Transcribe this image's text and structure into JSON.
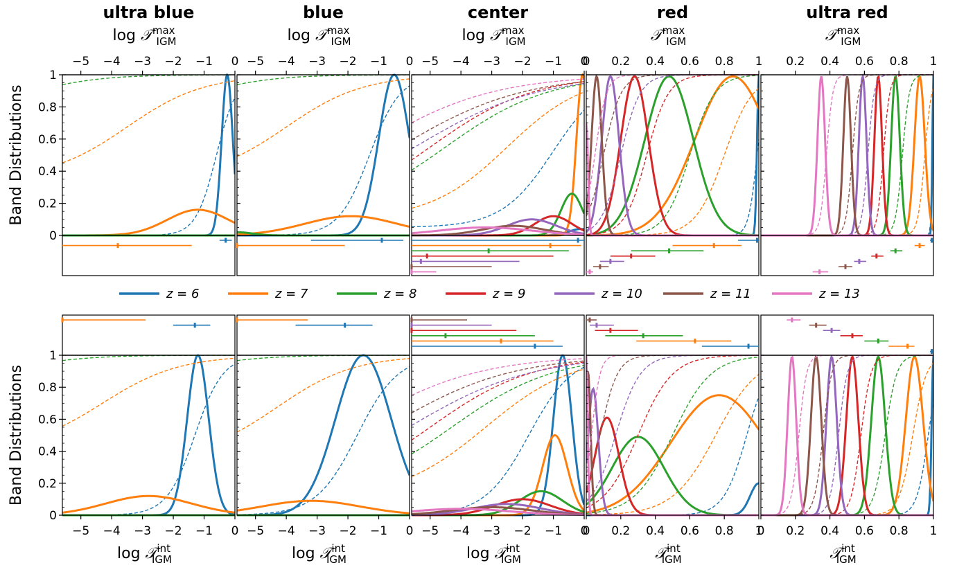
{
  "figure": {
    "ylabel": "Band  Distributions",
    "titles": [
      "ultra blue",
      "blue",
      "center",
      "red",
      "ultra red"
    ],
    "top_xlabels": [
      "log 𝒯ᵐᵃˣ_IGM",
      "log 𝒯ᵐᵃˣ_IGM",
      "log 𝒯ᵐᵃˣ_IGM",
      "𝒯ᵐᵃˣ_IGM",
      "𝒯ᵐᵃˣ_IGM"
    ],
    "bottom_xlabels": [
      "log 𝒯ⁱⁿᵗ_IGM",
      "log 𝒯ⁱⁿᵗ_IGM",
      "log 𝒯ⁱⁿᵗ_IGM",
      "𝒯ⁱⁿᵗ_IGM",
      "𝒯ⁱⁿᵗ_IGM"
    ],
    "label_parts": {
      "log": "log ",
      "T": "𝒯",
      "max": "max",
      "int": "int",
      "sub": "IGM"
    }
  },
  "chart_data": {
    "type": "line",
    "colors": {
      "6": "#1f77b4",
      "7": "#ff7f0e",
      "8": "#2ca02c",
      "9": "#d62728",
      "10": "#9467bd",
      "11": "#8c564b",
      "13": "#e377c2"
    },
    "legend": [
      {
        "z": "6",
        "label": "z = 6"
      },
      {
        "z": "7",
        "label": "z = 7"
      },
      {
        "z": "8",
        "label": "z = 8"
      },
      {
        "z": "9",
        "label": "z = 9"
      },
      {
        "z": "10",
        "label": "z = 10"
      },
      {
        "z": "11",
        "label": "z = 11"
      },
      {
        "z": "13",
        "label": "z = 13"
      }
    ],
    "ylim": [
      0,
      1
    ],
    "yticks": [
      "0",
      "0.2",
      "0.4",
      "0.6",
      "0.8",
      "1"
    ],
    "log_xlim": [
      -5.6,
      0
    ],
    "lin_xlim": [
      0,
      1
    ],
    "log_xticks": [
      "−5",
      "−4",
      "−3",
      "−2",
      "−1",
      "0"
    ],
    "lin_xticks": [
      "0",
      "0.2",
      "0.4",
      "0.6",
      "0.8",
      "1"
    ],
    "lin_xticks_ultra_red_top": [
      "0.2",
      "0.4",
      "0.6",
      "0.8",
      "1"
    ],
    "panels": {
      "top": [
        {
          "z": "6",
          "peak_x": -0.25,
          "peak_y": 1.0,
          "w": 0.18,
          "cdf_mid": -0.6,
          "cdf_k": 3.0,
          "cdf_base": 0.0
        },
        {
          "z": "7",
          "peak_x": -1.2,
          "peak_y": 0.16,
          "w": 1.0,
          "cdf_mid": -3.5,
          "cdf_k": 0.8,
          "cdf_base": 0.35
        },
        {
          "z": "8",
          "peak_x": -5.6,
          "peak_y": 0.0,
          "w": 0.5,
          "cdf_mid": -6.5,
          "cdf_k": 0.9,
          "cdf_base": 0.8
        }
      ],
      "top_blue": [
        {
          "z": "6",
          "peak_x": -0.5,
          "peak_y": 1.0,
          "w": 0.5,
          "cdf_mid": -1.3,
          "cdf_k": 2.0,
          "cdf_base": 0.0
        },
        {
          "z": "7",
          "peak_x": -1.9,
          "peak_y": 0.12,
          "w": 1.5,
          "cdf_mid": -4.0,
          "cdf_k": 0.8,
          "cdf_base": 0.35
        },
        {
          "z": "8",
          "peak_x": -5.6,
          "peak_y": 0.02,
          "w": 0.5,
          "cdf_mid": -6.5,
          "cdf_k": 0.9,
          "cdf_base": 0.8
        }
      ],
      "top_center": [
        {
          "z": "6",
          "peak_x": -0.1,
          "peak_y": 0.04,
          "w": 0.4,
          "cdf_mid": -1.0,
          "cdf_k": 1.2,
          "cdf_base": 0.05
        },
        {
          "z": "7",
          "peak_x": -0.05,
          "peak_y": 1.0,
          "w": 0.2,
          "cdf_mid": -2.5,
          "cdf_k": 0.8,
          "cdf_base": 0.1
        },
        {
          "z": "8",
          "peak_x": -0.4,
          "peak_y": 0.26,
          "w": 0.35,
          "cdf_mid": -4.5,
          "cdf_k": 0.6,
          "cdf_base": 0.1
        },
        {
          "z": "9",
          "peak_x": -1.0,
          "peak_y": 0.12,
          "w": 0.6,
          "cdf_mid": -5.0,
          "cdf_k": 0.6,
          "cdf_base": 0.1
        },
        {
          "z": "10",
          "peak_x": -1.7,
          "peak_y": 0.1,
          "w": 0.8,
          "cdf_mid": -5.5,
          "cdf_k": 0.5,
          "cdf_base": 0.1
        },
        {
          "z": "11",
          "peak_x": -2.3,
          "peak_y": 0.06,
          "w": 1.0,
          "cdf_mid": -6.0,
          "cdf_k": 0.5,
          "cdf_base": 0.1
        },
        {
          "z": "13",
          "peak_x": -3.2,
          "peak_y": 0.05,
          "w": 1.5,
          "cdf_mid": -7.0,
          "cdf_k": 0.5,
          "cdf_base": 0.1
        }
      ],
      "top_red": [
        {
          "z": "6",
          "peak_x": 1.0,
          "peak_y": 1.0,
          "w": 0.01,
          "cdf_mid": 0.99,
          "cdf_k": 40,
          "cdf_base": 0.0
        },
        {
          "z": "7",
          "peak_x": 0.85,
          "peak_y": 0.99,
          "w": 0.22,
          "cdf_mid": 0.8,
          "cdf_k": 12,
          "cdf_base": 0.0
        },
        {
          "z": "8",
          "peak_x": 0.48,
          "peak_y": 0.99,
          "w": 0.14,
          "cdf_mid": 0.6,
          "cdf_k": 14,
          "cdf_base": 0.0
        },
        {
          "z": "9",
          "peak_x": 0.28,
          "peak_y": 0.99,
          "w": 0.08,
          "cdf_mid": 0.35,
          "cdf_k": 16,
          "cdf_base": 0.0
        },
        {
          "z": "10",
          "peak_x": 0.14,
          "peak_y": 0.99,
          "w": 0.05,
          "cdf_mid": 0.2,
          "cdf_k": 18,
          "cdf_base": 0.0
        },
        {
          "z": "11",
          "peak_x": 0.06,
          "peak_y": 0.99,
          "w": 0.03,
          "cdf_mid": 0.1,
          "cdf_k": 20,
          "cdf_base": 0.0
        },
        {
          "z": "13",
          "peak_x": 0.0,
          "peak_y": 0.7,
          "w": 0.01,
          "cdf_mid": 0.05,
          "cdf_k": 30,
          "cdf_base": 0.0
        }
      ],
      "top_ultra_red": [
        {
          "z": "6",
          "peak_x": 1.0,
          "peak_y": 1.0,
          "w": 0.006,
          "cdf_mid": 0.995,
          "cdf_k": 200,
          "cdf_base": 0.0
        },
        {
          "z": "7",
          "peak_x": 0.92,
          "peak_y": 0.99,
          "w": 0.03,
          "cdf_mid": 0.95,
          "cdf_k": 50,
          "cdf_base": 0.0
        },
        {
          "z": "8",
          "peak_x": 0.78,
          "peak_y": 0.99,
          "w": 0.025,
          "cdf_mid": 0.82,
          "cdf_k": 50,
          "cdf_base": 0.0
        },
        {
          "z": "9",
          "peak_x": 0.68,
          "peak_y": 0.99,
          "w": 0.022,
          "cdf_mid": 0.71,
          "cdf_k": 55,
          "cdf_base": 0.0
        },
        {
          "z": "10",
          "peak_x": 0.59,
          "peak_y": 0.99,
          "w": 0.022,
          "cdf_mid": 0.62,
          "cdf_k": 55,
          "cdf_base": 0.0
        },
        {
          "z": "11",
          "peak_x": 0.5,
          "peak_y": 0.99,
          "w": 0.022,
          "cdf_mid": 0.53,
          "cdf_k": 55,
          "cdf_base": 0.0
        },
        {
          "z": "13",
          "peak_x": 0.35,
          "peak_y": 0.99,
          "w": 0.022,
          "cdf_mid": 0.38,
          "cdf_k": 55,
          "cdf_base": 0.0
        }
      ],
      "bottom_ultra_blue": [
        {
          "z": "6",
          "peak_x": -1.2,
          "peak_y": 1.0,
          "w": 0.35,
          "cdf_mid": -1.3,
          "cdf_k": 2.2,
          "cdf_base": 0.0
        },
        {
          "z": "7",
          "peak_x": -2.8,
          "peak_y": 0.12,
          "w": 1.4,
          "cdf_mid": -4.3,
          "cdf_k": 0.8,
          "cdf_base": 0.4
        },
        {
          "z": "8",
          "peak_x": -5.6,
          "peak_y": 0.0,
          "w": 0.5,
          "cdf_mid": -7.0,
          "cdf_k": 0.9,
          "cdf_base": 0.85
        }
      ],
      "bottom_blue": [
        {
          "z": "6",
          "peak_x": -1.5,
          "peak_y": 1.0,
          "w": 0.9,
          "cdf_mid": -1.7,
          "cdf_k": 1.5,
          "cdf_base": 0.0
        },
        {
          "z": "7",
          "peak_x": -3.2,
          "peak_y": 0.09,
          "w": 1.6,
          "cdf_mid": -4.3,
          "cdf_k": 0.8,
          "cdf_base": 0.35
        },
        {
          "z": "8",
          "peak_x": -5.6,
          "peak_y": 0.0,
          "w": 0.5,
          "cdf_mid": -7.0,
          "cdf_k": 0.9,
          "cdf_base": 0.85
        }
      ],
      "bottom_center": [
        {
          "z": "6",
          "peak_x": -0.7,
          "peak_y": 1.0,
          "w": 0.3,
          "cdf_mid": -1.8,
          "cdf_k": 1.4,
          "cdf_base": 0.0
        },
        {
          "z": "7",
          "peak_x": -0.95,
          "peak_y": 0.5,
          "w": 0.4,
          "cdf_mid": -3.2,
          "cdf_k": 0.7,
          "cdf_base": 0.1
        },
        {
          "z": "8",
          "peak_x": -1.4,
          "peak_y": 0.15,
          "w": 0.7,
          "cdf_mid": -4.3,
          "cdf_k": 0.6,
          "cdf_base": 0.1
        },
        {
          "z": "9",
          "peak_x": -2.0,
          "peak_y": 0.1,
          "w": 0.9,
          "cdf_mid": -5.0,
          "cdf_k": 0.6,
          "cdf_base": 0.1
        },
        {
          "z": "10",
          "peak_x": -2.5,
          "peak_y": 0.07,
          "w": 1.1,
          "cdf_mid": -5.7,
          "cdf_k": 0.5,
          "cdf_base": 0.1
        },
        {
          "z": "11",
          "peak_x": -3.0,
          "peak_y": 0.05,
          "w": 1.3,
          "cdf_mid": -6.4,
          "cdf_k": 0.5,
          "cdf_base": 0.1
        },
        {
          "z": "13",
          "peak_x": -4.0,
          "peak_y": 0.04,
          "w": 1.6,
          "cdf_mid": -7.5,
          "cdf_k": 0.5,
          "cdf_base": 0.1
        }
      ],
      "bottom_red": [
        {
          "z": "6",
          "peak_x": 1.0,
          "peak_y": 0.2,
          "w": 0.05,
          "cdf_mid": 0.93,
          "cdf_k": 15,
          "cdf_base": 0.0
        },
        {
          "z": "7",
          "peak_x": 0.77,
          "peak_y": 0.75,
          "w": 0.28,
          "cdf_mid": 0.75,
          "cdf_k": 8,
          "cdf_base": 0.0
        },
        {
          "z": "8",
          "peak_x": 0.3,
          "peak_y": 0.49,
          "w": 0.15,
          "cdf_mid": 0.5,
          "cdf_k": 9,
          "cdf_base": 0.0
        },
        {
          "z": "9",
          "peak_x": 0.12,
          "peak_y": 0.61,
          "w": 0.07,
          "cdf_mid": 0.3,
          "cdf_k": 10,
          "cdf_base": 0.0
        },
        {
          "z": "10",
          "peak_x": 0.04,
          "peak_y": 0.79,
          "w": 0.03,
          "cdf_mid": 0.17,
          "cdf_k": 14,
          "cdf_base": 0.0
        },
        {
          "z": "11",
          "peak_x": 0.01,
          "peak_y": 0.9,
          "w": 0.015,
          "cdf_mid": 0.08,
          "cdf_k": 20,
          "cdf_base": 0.0
        },
        {
          "z": "13",
          "peak_x": 0.0,
          "peak_y": 1.0,
          "w": 0.008,
          "cdf_mid": 0.03,
          "cdf_k": 40,
          "cdf_base": 0.0
        }
      ],
      "bottom_ultra_red": [
        {
          "z": "6",
          "peak_x": 1.0,
          "peak_y": 1.0,
          "w": 0.01,
          "cdf_mid": 0.97,
          "cdf_k": 30,
          "cdf_base": 0.0
        },
        {
          "z": "7",
          "peak_x": 0.89,
          "peak_y": 0.99,
          "w": 0.05,
          "cdf_mid": 0.88,
          "cdf_k": 25,
          "cdf_base": 0.0
        },
        {
          "z": "8",
          "peak_x": 0.68,
          "peak_y": 0.99,
          "w": 0.04,
          "cdf_mid": 0.72,
          "cdf_k": 30,
          "cdf_base": 0.0
        },
        {
          "z": "9",
          "peak_x": 0.53,
          "peak_y": 0.99,
          "w": 0.035,
          "cdf_mid": 0.58,
          "cdf_k": 35,
          "cdf_base": 0.0
        },
        {
          "z": "10",
          "peak_x": 0.41,
          "peak_y": 0.99,
          "w": 0.03,
          "cdf_mid": 0.45,
          "cdf_k": 40,
          "cdf_base": 0.0
        },
        {
          "z": "11",
          "peak_x": 0.32,
          "peak_y": 0.99,
          "w": 0.03,
          "cdf_mid": 0.36,
          "cdf_k": 40,
          "cdf_base": 0.0
        },
        {
          "z": "13",
          "peak_x": 0.18,
          "peak_y": 0.99,
          "w": 0.025,
          "cdf_mid": 0.22,
          "cdf_k": 45,
          "cdf_base": 0.0
        }
      ]
    },
    "errorbars": {
      "top": [
        [
          {
            "z": "6",
            "x": -0.3,
            "lo": -0.5,
            "hi": -0.1
          },
          {
            "z": "7",
            "x": -3.8,
            "lo": -5.6,
            "hi": -1.4
          }
        ],
        [
          {
            "z": "6",
            "x": -0.9,
            "lo": -3.2,
            "hi": -0.2
          },
          {
            "z": "7",
            "x": -5.6,
            "lo": -5.6,
            "hi": -2.1
          }
        ],
        [
          {
            "z": "6",
            "x": -0.2,
            "lo": -5.6,
            "hi": 0.0
          },
          {
            "z": "7",
            "x": -1.1,
            "lo": -5.6,
            "hi": -0.1
          },
          {
            "z": "8",
            "x": -3.1,
            "lo": -5.6,
            "hi": -0.5
          },
          {
            "z": "9",
            "x": -5.1,
            "lo": -5.6,
            "hi": -1.0
          },
          {
            "z": "10",
            "x": -5.3,
            "lo": -5.6,
            "hi": -2.1
          },
          {
            "z": "11",
            "x": -5.6,
            "lo": -5.6,
            "hi": -3.0
          },
          {
            "z": "13",
            "x": -5.6,
            "lo": -5.6,
            "hi": -4.8
          }
        ],
        [
          {
            "z": "6",
            "x": 0.99,
            "lo": 0.88,
            "hi": 1.0
          },
          {
            "z": "7",
            "x": 0.74,
            "lo": 0.5,
            "hi": 0.9
          },
          {
            "z": "8",
            "x": 0.48,
            "lo": 0.26,
            "hi": 0.68
          },
          {
            "z": "9",
            "x": 0.26,
            "lo": 0.14,
            "hi": 0.4
          },
          {
            "z": "10",
            "x": 0.14,
            "lo": 0.08,
            "hi": 0.22
          },
          {
            "z": "11",
            "x": 0.08,
            "lo": 0.04,
            "hi": 0.13
          },
          {
            "z": "13",
            "x": 0.02,
            "lo": 0.0,
            "hi": 0.04
          }
        ],
        [
          {
            "z": "6",
            "x": 0.99,
            "lo": 0.98,
            "hi": 1.0
          },
          {
            "z": "7",
            "x": 0.92,
            "lo": 0.89,
            "hi": 0.95
          },
          {
            "z": "8",
            "x": 0.78,
            "lo": 0.75,
            "hi": 0.82
          },
          {
            "z": "9",
            "x": 0.67,
            "lo": 0.64,
            "hi": 0.71
          },
          {
            "z": "10",
            "x": 0.57,
            "lo": 0.54,
            "hi": 0.61
          },
          {
            "z": "11",
            "x": 0.49,
            "lo": 0.45,
            "hi": 0.53
          },
          {
            "z": "13",
            "x": 0.34,
            "lo": 0.3,
            "hi": 0.39
          }
        ]
      ],
      "bottom": [
        [
          {
            "z": "6",
            "x": -1.3,
            "lo": -2.0,
            "hi": -0.8
          },
          {
            "z": "7",
            "x": -5.6,
            "lo": -5.6,
            "hi": -2.9
          }
        ],
        [
          {
            "z": "6",
            "x": -2.1,
            "lo": -3.7,
            "hi": -1.2
          },
          {
            "z": "7",
            "x": -5.6,
            "lo": -5.6,
            "hi": -3.3
          }
        ],
        [
          {
            "z": "6",
            "x": -1.6,
            "lo": -5.6,
            "hi": -0.7
          },
          {
            "z": "7",
            "x": -2.7,
            "lo": -5.6,
            "hi": -1.0
          },
          {
            "z": "8",
            "x": -4.5,
            "lo": -5.6,
            "hi": -1.6
          },
          {
            "z": "9",
            "x": -5.6,
            "lo": -5.6,
            "hi": -2.2
          },
          {
            "z": "10",
            "x": -5.6,
            "lo": -5.6,
            "hi": -3.0
          },
          {
            "z": "11",
            "x": -5.6,
            "lo": -5.6,
            "hi": -3.8
          }
        ],
        [
          {
            "z": "6",
            "x": 0.94,
            "lo": 0.67,
            "hi": 1.0
          },
          {
            "z": "7",
            "x": 0.63,
            "lo": 0.29,
            "hi": 0.84
          },
          {
            "z": "8",
            "x": 0.33,
            "lo": 0.11,
            "hi": 0.56
          },
          {
            "z": "9",
            "x": 0.14,
            "lo": 0.05,
            "hi": 0.3
          },
          {
            "z": "10",
            "x": 0.06,
            "lo": 0.02,
            "hi": 0.16
          },
          {
            "z": "11",
            "x": 0.02,
            "lo": 0.0,
            "hi": 0.06
          }
        ],
        [
          {
            "z": "6",
            "x": 0.99,
            "lo": 0.98,
            "hi": 1.0
          },
          {
            "z": "7",
            "x": 0.85,
            "lo": 0.74,
            "hi": 0.89
          },
          {
            "z": "8",
            "x": 0.68,
            "lo": 0.6,
            "hi": 0.74
          },
          {
            "z": "9",
            "x": 0.53,
            "lo": 0.46,
            "hi": 0.59
          },
          {
            "z": "10",
            "x": 0.41,
            "lo": 0.36,
            "hi": 0.46
          },
          {
            "z": "11",
            "x": 0.32,
            "lo": 0.28,
            "hi": 0.38
          },
          {
            "z": "13",
            "x": 0.18,
            "lo": 0.15,
            "hi": 0.23
          }
        ]
      ]
    }
  }
}
